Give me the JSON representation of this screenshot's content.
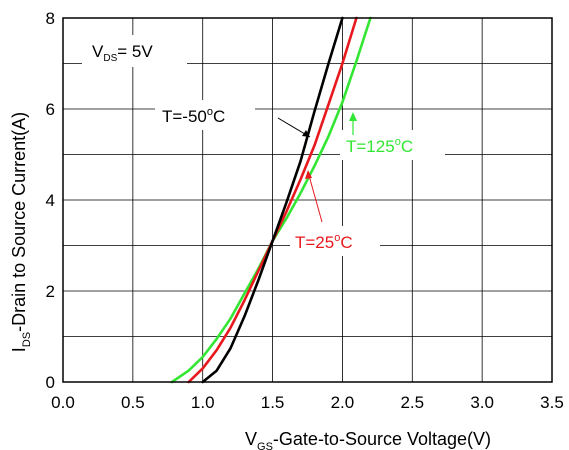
{
  "chart_data": {
    "type": "line",
    "xlabel": {
      "main": "V",
      "sub": "GS",
      "rest": "-Gate-to-Source Voltage(V)"
    },
    "ylabel": {
      "main": "I",
      "sub": "DS",
      "rest": "-Drain to Source Current(A)"
    },
    "xlim": [
      0,
      3.5
    ],
    "ylim": [
      0,
      8
    ],
    "xticks": [
      "0.0",
      "0.5",
      "1.0",
      "1.5",
      "2.0",
      "2.5",
      "3.0",
      "3.5"
    ],
    "yticks": [
      "0",
      "2",
      "4",
      "6",
      "8"
    ],
    "grid": true,
    "condition": {
      "main": "V",
      "sub": "DS",
      "rest": "= 5V"
    },
    "series": [
      {
        "name": "T=-50°C",
        "label": {
          "pre": "T=-50",
          "sup": "o",
          "post": "C"
        },
        "color": "#000000",
        "x": [
          1.0,
          1.1,
          1.2,
          1.3,
          1.4,
          1.5,
          1.6,
          1.7,
          1.8,
          1.9,
          2.0
        ],
        "y": [
          0.0,
          0.25,
          0.75,
          1.45,
          2.25,
          3.1,
          3.95,
          4.85,
          5.95,
          7.0,
          8.0
        ]
      },
      {
        "name": "T=25°C",
        "label": {
          "pre": "T=25",
          "sup": "o",
          "post": "C"
        },
        "color": "#e8191e",
        "x": [
          0.9,
          1.0,
          1.1,
          1.2,
          1.3,
          1.4,
          1.5,
          1.6,
          1.7,
          1.8,
          1.9,
          2.0,
          2.1
        ],
        "y": [
          0.0,
          0.3,
          0.7,
          1.2,
          1.8,
          2.45,
          3.1,
          3.75,
          4.45,
          5.2,
          6.1,
          7.0,
          8.0
        ]
      },
      {
        "name": "T=125°C",
        "label": {
          "pre": "T=125",
          "sup": "o",
          "post": "C"
        },
        "color": "#33e633",
        "x": [
          0.78,
          0.9,
          1.0,
          1.1,
          1.2,
          1.3,
          1.4,
          1.5,
          1.6,
          1.7,
          1.8,
          1.9,
          2.0,
          2.1,
          2.2
        ],
        "y": [
          0.0,
          0.25,
          0.55,
          0.95,
          1.4,
          1.95,
          2.5,
          3.1,
          3.6,
          4.15,
          4.75,
          5.4,
          6.15,
          7.05,
          8.0
        ]
      }
    ]
  }
}
